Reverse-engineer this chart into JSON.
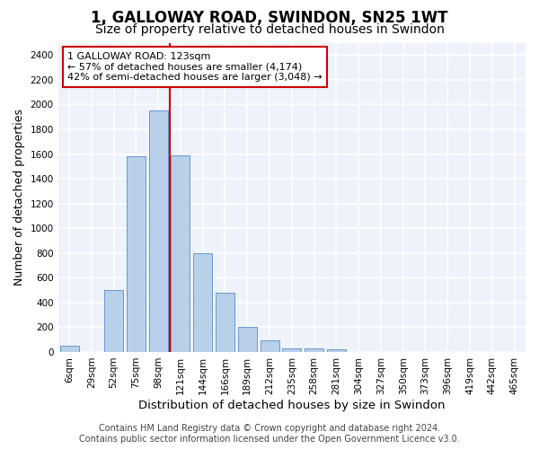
{
  "title": "1, GALLOWAY ROAD, SWINDON, SN25 1WT",
  "subtitle": "Size of property relative to detached houses in Swindon",
  "xlabel": "Distribution of detached houses by size in Swindon",
  "ylabel": "Number of detached properties",
  "categories": [
    "6sqm",
    "29sqm",
    "52sqm",
    "75sqm",
    "98sqm",
    "121sqm",
    "144sqm",
    "166sqm",
    "189sqm",
    "212sqm",
    "235sqm",
    "258sqm",
    "281sqm",
    "304sqm",
    "327sqm",
    "350sqm",
    "373sqm",
    "396sqm",
    "419sqm",
    "442sqm",
    "465sqm"
  ],
  "values": [
    50,
    0,
    500,
    1580,
    1950,
    1590,
    800,
    480,
    200,
    95,
    30,
    30,
    20,
    0,
    0,
    0,
    0,
    0,
    0,
    0,
    0
  ],
  "bar_color": "#b8d0e8",
  "bar_edge_color": "#6699cc",
  "ylim": [
    0,
    2500
  ],
  "yticks": [
    0,
    200,
    400,
    600,
    800,
    1000,
    1200,
    1400,
    1600,
    1800,
    2000,
    2200,
    2400
  ],
  "property_line_x": 5.0,
  "annotation_text": "1 GALLOWAY ROAD: 123sqm\n← 57% of detached houses are smaller (4,174)\n42% of semi-detached houses are larger (3,048) →",
  "annotation_box_color": "#ffffff",
  "annotation_box_edge_color": "#cc0000",
  "line_color": "#cc0000",
  "footer_line1": "Contains HM Land Registry data © Crown copyright and database right 2024.",
  "footer_line2": "Contains public sector information licensed under the Open Government Licence v3.0.",
  "bg_color": "#eef2fa",
  "grid_color": "#ffffff",
  "fig_bg_color": "#ffffff",
  "title_fontsize": 12,
  "subtitle_fontsize": 10,
  "axis_label_fontsize": 9,
  "tick_fontsize": 7.5,
  "annotation_fontsize": 8,
  "footer_fontsize": 7
}
